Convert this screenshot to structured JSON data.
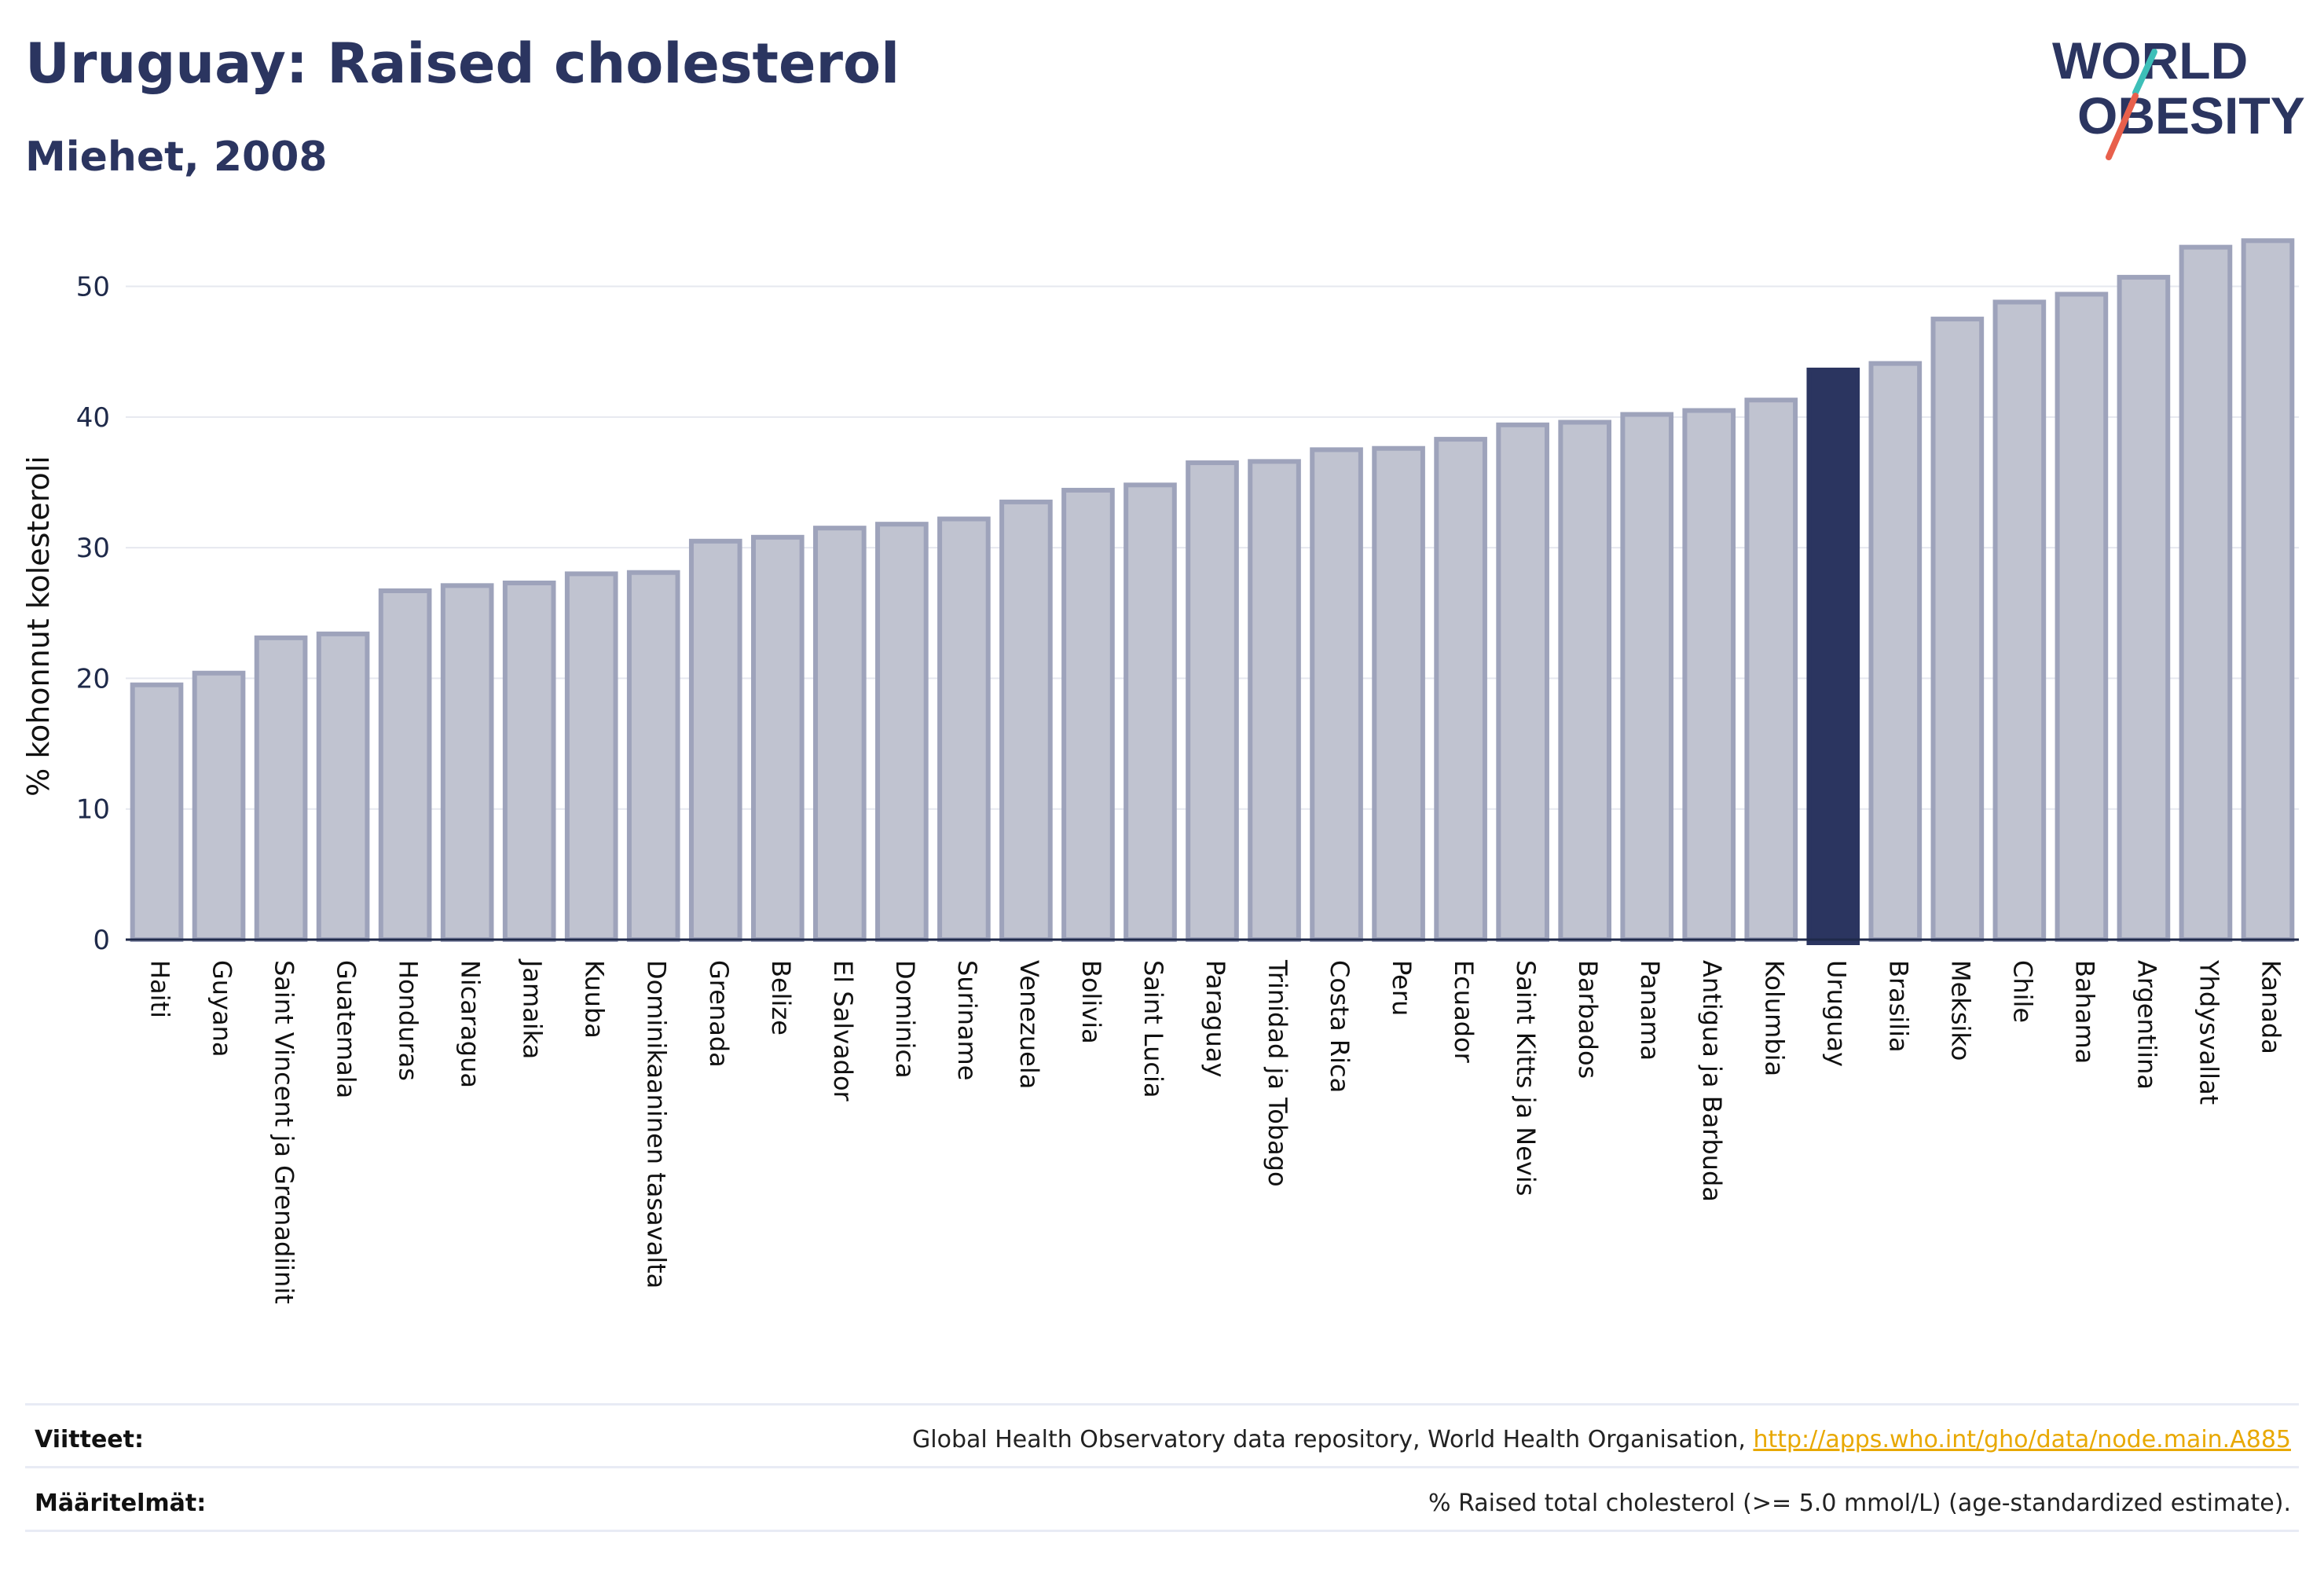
{
  "header": {
    "title": "Uruguay: Raised cholesterol",
    "subtitle": "Miehet, 2008"
  },
  "logo": {
    "line1": "WORLD",
    "line2": "OBESITY",
    "text_color": "#2b3560",
    "slash_colors": [
      "#3dbfb8",
      "#e8604c"
    ]
  },
  "colors": {
    "bar_fill": "#c0c3d0",
    "bar_stroke": "#9ea3bb",
    "highlight": "#2b3560",
    "grid": "#e6e8ef",
    "axis": "#1f2a4a"
  },
  "chart_data": {
    "type": "bar",
    "ylabel": "% kohonnut kolesteroli",
    "xlabel": "",
    "ylim": [
      0,
      54
    ],
    "yticks": [
      0,
      10,
      20,
      30,
      40,
      50
    ],
    "grid": true,
    "highlight": "Uruguay",
    "categories": [
      "Haiti",
      "Guyana",
      "Saint Vincent ja Grenadiinit",
      "Guatemala",
      "Honduras",
      "Nicaragua",
      "Jamaika",
      "Kuuba",
      "Dominikaaninen tasavalta",
      "Grenada",
      "Belize",
      "El Salvador",
      "Dominica",
      "Suriname",
      "Venezuela",
      "Bolivia",
      "Saint Lucia",
      "Paraguay",
      "Trinidad ja Tobago",
      "Costa Rica",
      "Peru",
      "Ecuador",
      "Saint Kitts ja Nevis",
      "Barbados",
      "Panama",
      "Antigua ja Barbuda",
      "Kolumbia",
      "Uruguay",
      "Brasilia",
      "Meksiko",
      "Chile",
      "Bahama",
      "Argentiina",
      "Yhdysvallat",
      "Kanada"
    ],
    "values": [
      19.5,
      20.4,
      23.1,
      23.4,
      26.7,
      27.1,
      27.3,
      28.0,
      28.1,
      30.5,
      30.8,
      31.5,
      31.8,
      32.2,
      33.5,
      34.4,
      34.8,
      36.5,
      36.6,
      37.5,
      37.6,
      38.3,
      39.4,
      39.6,
      40.2,
      40.5,
      41.3,
      43.6,
      44.1,
      47.5,
      48.8,
      49.4,
      50.7,
      53.0,
      53.5
    ]
  },
  "footer": {
    "sources_label": "Viitteet:",
    "sources_text": "Global Health Observatory data repository, World Health Organisation, ",
    "sources_link": "http://apps.who.int/gho/data/node.main.A885",
    "definitions_label": "Määritelmät:",
    "definitions_text": "% Raised total cholesterol (>= 5.0 mmol/L) (age-standardized estimate)."
  }
}
